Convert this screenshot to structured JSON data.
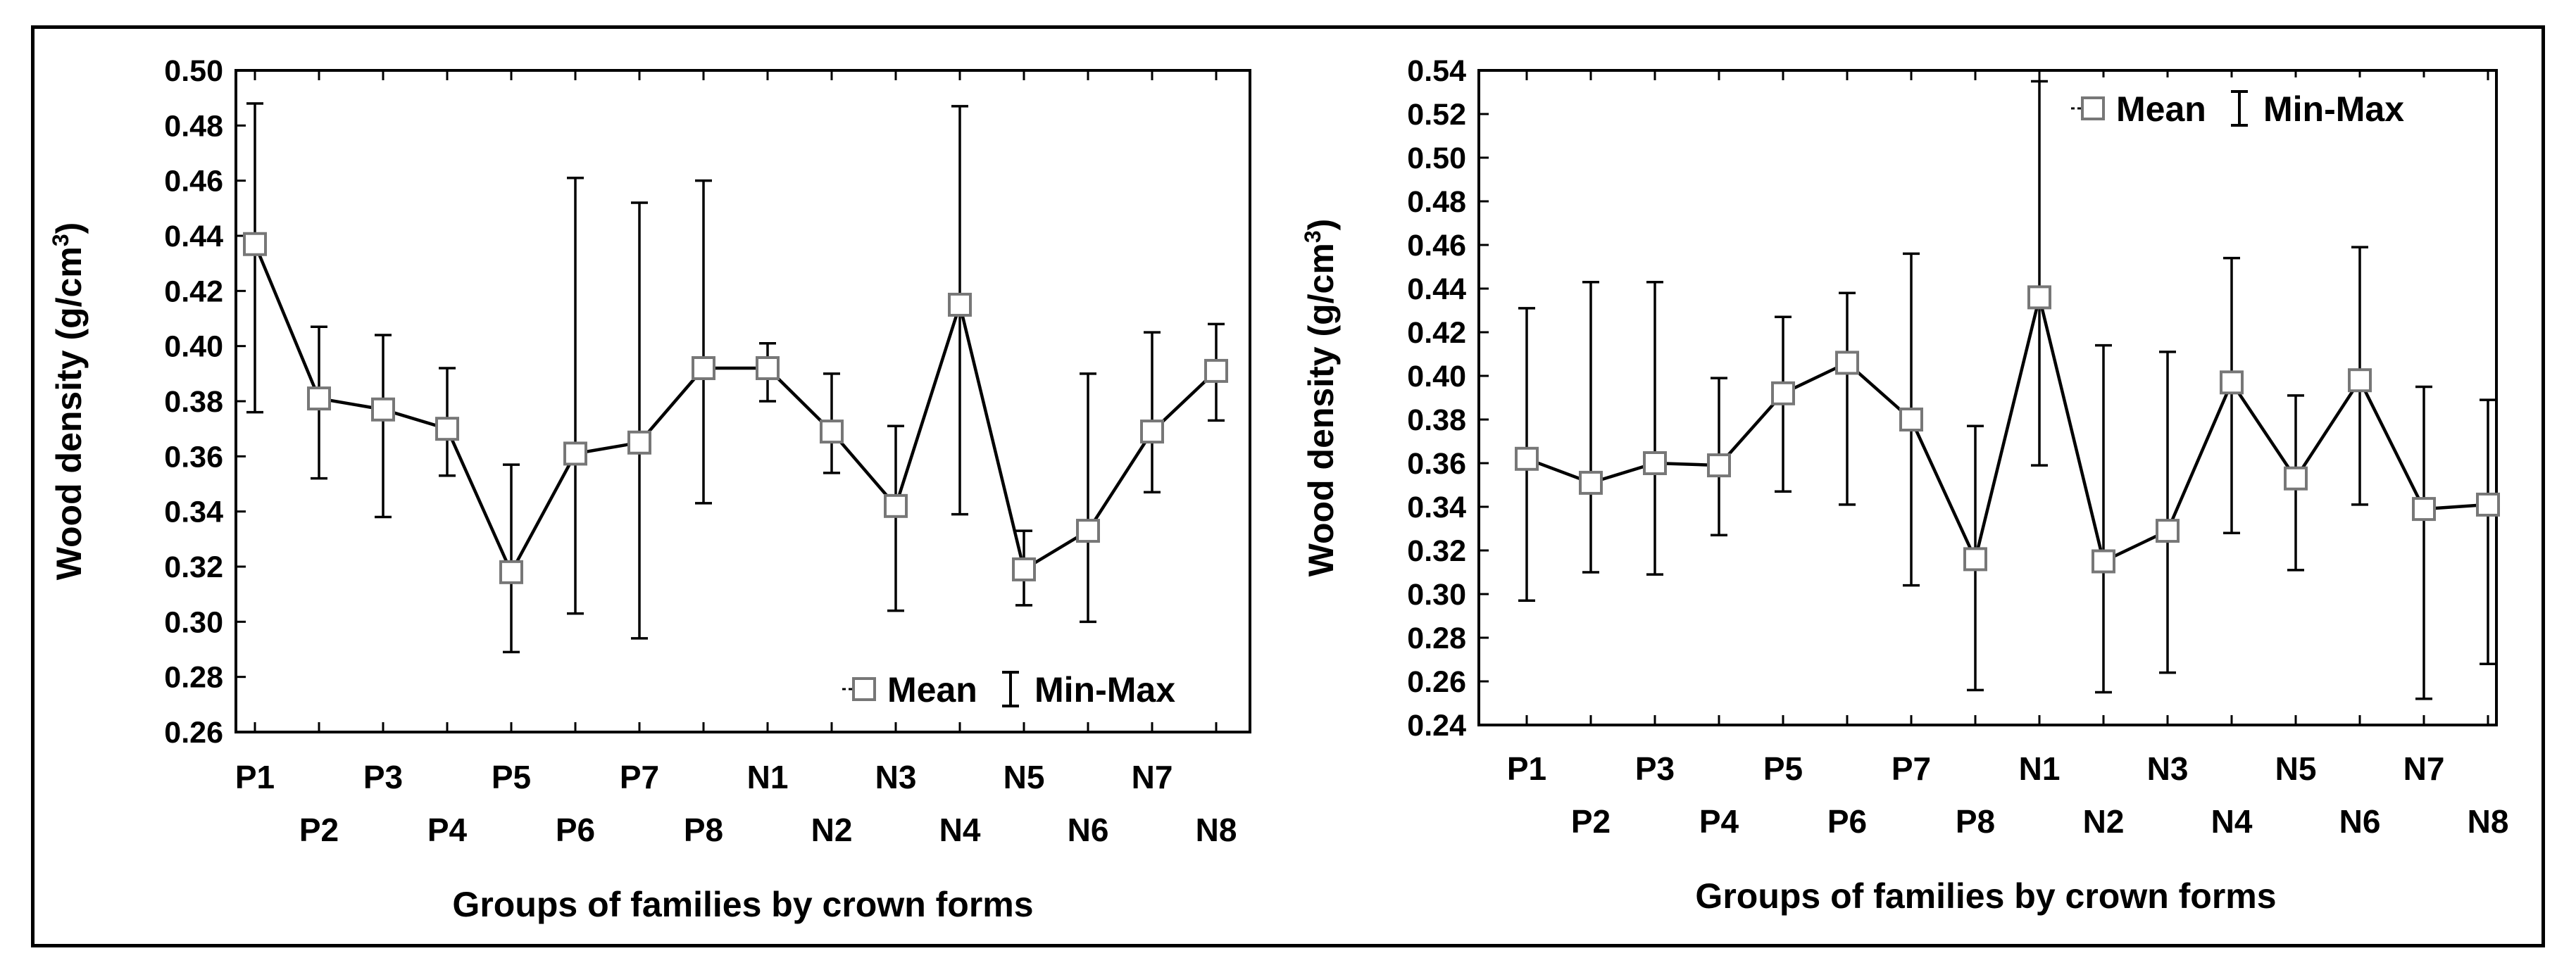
{
  "chart_data": [
    {
      "type": "line",
      "error_bars": "min-max",
      "title": "",
      "xlabel": "Groups of families by crown forms",
      "ylabel": "Wood density (g/cm",
      "ylabel_sup": "3",
      "ylabel_close": ")",
      "ylim": [
        0.26,
        0.5
      ],
      "yticks": [
        "0.26",
        "0.28",
        "0.30",
        "0.32",
        "0.34",
        "0.36",
        "0.38",
        "0.40",
        "0.42",
        "0.44",
        "0.46",
        "0.48",
        "0.50"
      ],
      "categories": [
        "P1",
        "P2",
        "P3",
        "P4",
        "P5",
        "P6",
        "P7",
        "P8",
        "N1",
        "N2",
        "N3",
        "N4",
        "N5",
        "N6",
        "N7",
        "N8"
      ],
      "mean": [
        0.437,
        0.381,
        0.377,
        0.37,
        0.318,
        0.361,
        0.365,
        0.392,
        0.392,
        0.369,
        0.342,
        0.415,
        0.319,
        0.333,
        0.369,
        0.391
      ],
      "min": [
        0.376,
        0.352,
        0.338,
        0.353,
        0.289,
        0.303,
        0.294,
        0.343,
        0.38,
        0.354,
        0.304,
        0.339,
        0.306,
        0.3,
        0.347,
        0.373
      ],
      "max": [
        0.488,
        0.407,
        0.404,
        0.392,
        0.357,
        0.461,
        0.452,
        0.46,
        0.401,
        0.39,
        0.371,
        0.487,
        0.333,
        0.39,
        0.405,
        0.408
      ],
      "legend": {
        "mean": "Mean",
        "range": "Min-Max",
        "position": "bottom-right"
      }
    },
    {
      "type": "line",
      "error_bars": "min-max",
      "title": "",
      "xlabel": "Groups of families by crown forms",
      "ylabel": "Wood density (g/cm",
      "ylabel_sup": "3",
      "ylabel_close": ")",
      "ylim": [
        0.24,
        0.54
      ],
      "yticks": [
        "0.24",
        "0.26",
        "0.28",
        "0.30",
        "0.32",
        "0.34",
        "0.36",
        "0.38",
        "0.40",
        "0.42",
        "0.44",
        "0.46",
        "0.48",
        "0.50",
        "0.52",
        "0.54"
      ],
      "categories": [
        "P1",
        "P2",
        "P3",
        "P4",
        "P5",
        "P6",
        "P7",
        "P8",
        "N1",
        "N2",
        "N3",
        "N4",
        "N5",
        "N6",
        "N7",
        "N8"
      ],
      "mean": [
        0.362,
        0.351,
        0.36,
        0.359,
        0.392,
        0.406,
        0.38,
        0.316,
        0.436,
        0.315,
        0.329,
        0.397,
        0.353,
        0.398,
        0.339,
        0.341
      ],
      "min": [
        0.297,
        0.31,
        0.309,
        0.327,
        0.347,
        0.341,
        0.304,
        0.256,
        0.359,
        0.255,
        0.264,
        0.328,
        0.311,
        0.341,
        0.252,
        0.268
      ],
      "max": [
        0.431,
        0.443,
        0.443,
        0.399,
        0.427,
        0.438,
        0.456,
        0.377,
        0.535,
        0.414,
        0.411,
        0.454,
        0.391,
        0.459,
        0.395,
        0.389
      ],
      "legend": {
        "mean": "Mean",
        "range": "Min-Max",
        "position": "top-right"
      }
    }
  ]
}
